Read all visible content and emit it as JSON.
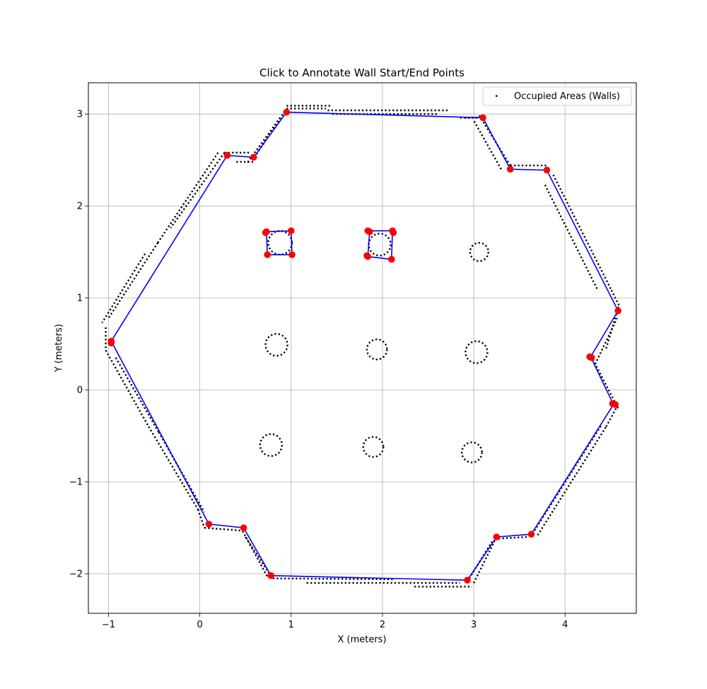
{
  "chart_data": {
    "type": "scatter",
    "title": "Click to Annotate Wall Start/End Points",
    "xlabel": "X (meters)",
    "ylabel": "Y (meters)",
    "xlim": [
      -1.22,
      4.78
    ],
    "ylim": [
      -2.43,
      3.34
    ],
    "xticks": [
      -1,
      0,
      1,
      2,
      3,
      4
    ],
    "xtick_labels": [
      "−1",
      "0",
      "1",
      "2",
      "3",
      "4"
    ],
    "yticks": [
      -2,
      -1,
      0,
      1,
      2,
      3
    ],
    "ytick_labels": [
      "−2",
      "−1",
      "0",
      "1",
      "2",
      "3"
    ],
    "grid": true,
    "legend": {
      "placement": "top-right",
      "entries": [
        "Occupied Areas (Walls)"
      ]
    },
    "colors": {
      "occupied": "#000000",
      "walls": "#0000ff",
      "points": "#ff0000",
      "grid": "#b0b0b0"
    },
    "occupied_segments": [
      [
        [
          0.95,
          3.09
        ],
        [
          1.43,
          3.09
        ]
      ],
      [
        [
          0.95,
          3.06
        ],
        [
          1.38,
          3.06
        ]
      ],
      [
        [
          1.4,
          3.04
        ],
        [
          2.73,
          3.04
        ]
      ],
      [
        [
          1.45,
          3.0
        ],
        [
          2.6,
          3.0
        ]
      ],
      [
        [
          2.85,
          2.96
        ],
        [
          3.05,
          2.96
        ]
      ],
      [
        [
          0.93,
          3.03
        ],
        [
          0.6,
          2.53
        ]
      ],
      [
        [
          0.88,
          2.96
        ],
        [
          0.52,
          2.47
        ]
      ],
      [
        [
          0.27,
          2.58
        ],
        [
          0.55,
          2.58
        ]
      ],
      [
        [
          0.4,
          2.48
        ],
        [
          0.6,
          2.48
        ]
      ],
      [
        [
          0.27,
          2.58
        ],
        [
          -0.32,
          1.76
        ]
      ],
      [
        [
          0.2,
          2.58
        ],
        [
          -0.46,
          1.6
        ]
      ],
      [
        [
          -0.46,
          1.6
        ],
        [
          -1.0,
          0.78
        ]
      ],
      [
        [
          -0.6,
          1.48
        ],
        [
          -1.07,
          0.73
        ]
      ],
      [
        [
          -1.03,
          0.68
        ],
        [
          -1.03,
          0.43
        ]
      ],
      [
        [
          -1.03,
          0.43
        ],
        [
          -0.56,
          -0.4
        ]
      ],
      [
        [
          -0.92,
          0.35
        ],
        [
          -0.45,
          -0.46
        ]
      ],
      [
        [
          -0.56,
          -0.4
        ],
        [
          -0.02,
          -1.3
        ]
      ],
      [
        [
          -0.45,
          -0.46
        ],
        [
          0.05,
          -1.33
        ]
      ],
      [
        [
          -0.02,
          -1.3
        ],
        [
          0.05,
          -1.5
        ]
      ],
      [
        [
          0.05,
          -1.5
        ],
        [
          0.45,
          -1.53
        ]
      ],
      [
        [
          0.45,
          -1.5
        ],
        [
          0.75,
          -2.05
        ]
      ],
      [
        [
          0.5,
          -1.6
        ],
        [
          0.77,
          -2.01
        ]
      ],
      [
        [
          0.8,
          -2.05
        ],
        [
          2.12,
          -2.06
        ]
      ],
      [
        [
          1.17,
          -2.1
        ],
        [
          2.85,
          -2.1
        ]
      ],
      [
        [
          2.35,
          -2.14
        ],
        [
          2.98,
          -2.14
        ]
      ],
      [
        [
          3.0,
          -2.1
        ],
        [
          3.23,
          -1.64
        ]
      ],
      [
        [
          2.95,
          -2.05
        ],
        [
          3.2,
          -1.65
        ]
      ],
      [
        [
          3.23,
          -1.62
        ],
        [
          3.58,
          -1.6
        ]
      ],
      [
        [
          3.7,
          -1.58
        ],
        [
          4.45,
          -0.4
        ]
      ],
      [
        [
          3.62,
          -1.6
        ],
        [
          4.4,
          -0.38
        ]
      ],
      [
        [
          4.45,
          -0.4
        ],
        [
          4.58,
          -0.16
        ]
      ],
      [
        [
          4.58,
          -0.2
        ],
        [
          4.3,
          0.34
        ]
      ],
      [
        [
          4.33,
          0.28
        ],
        [
          4.57,
          0.78
        ]
      ],
      [
        [
          4.45,
          0.45
        ],
        [
          4.59,
          0.92
        ]
      ],
      [
        [
          4.59,
          0.92
        ],
        [
          4.5,
          1.1
        ]
      ],
      [
        [
          4.5,
          1.1
        ],
        [
          3.87,
          2.34
        ]
      ],
      [
        [
          4.35,
          1.1
        ],
        [
          3.77,
          2.25
        ]
      ],
      [
        [
          3.4,
          2.44
        ],
        [
          3.8,
          2.44
        ]
      ],
      [
        [
          3.4,
          2.44
        ],
        [
          3.05,
          3.0
        ]
      ],
      [
        [
          3.3,
          2.4
        ],
        [
          3.0,
          2.93
        ]
      ],
      [
        [
          2.9,
          2.96
        ],
        [
          3.1,
          2.96
        ]
      ]
    ],
    "occupied_blobs": [
      {
        "cx": 0.88,
        "cy": 1.6,
        "r": 0.13
      },
      {
        "cx": 1.97,
        "cy": 1.58,
        "r": 0.12
      },
      {
        "cx": 3.06,
        "cy": 1.5,
        "r": 0.1
      },
      {
        "cx": 0.84,
        "cy": 0.49,
        "r": 0.12
      },
      {
        "cx": 1.94,
        "cy": 0.44,
        "r": 0.11
      },
      {
        "cx": 3.03,
        "cy": 0.41,
        "r": 0.12
      },
      {
        "cx": 0.78,
        "cy": -0.6,
        "r": 0.12
      },
      {
        "cx": 1.9,
        "cy": -0.62,
        "r": 0.11
      },
      {
        "cx": 2.98,
        "cy": -0.68,
        "r": 0.11
      }
    ],
    "outer_wall_polygon": [
      [
        0.95,
        3.02
      ],
      [
        3.1,
        2.96
      ],
      [
        3.4,
        2.4
      ],
      [
        3.8,
        2.39
      ],
      [
        4.58,
        0.86
      ],
      [
        4.28,
        0.36
      ],
      [
        4.53,
        -0.16
      ],
      [
        3.63,
        -1.57
      ],
      [
        3.25,
        -1.6
      ],
      [
        2.93,
        -2.07
      ],
      [
        0.78,
        -2.02
      ],
      [
        0.48,
        -1.5
      ],
      [
        0.1,
        -1.46
      ],
      [
        -0.97,
        0.53
      ],
      [
        0.3,
        2.55
      ],
      [
        0.59,
        2.53
      ],
      [
        0.95,
        3.02
      ]
    ],
    "inner_wall_polygons": [
      [
        [
          0.73,
          1.72
        ],
        [
          1.0,
          1.73
        ],
        [
          1.01,
          1.47
        ],
        [
          0.74,
          1.47
        ],
        [
          0.73,
          1.72
        ]
      ],
      [
        [
          1.84,
          1.73
        ],
        [
          2.11,
          1.73
        ],
        [
          2.1,
          1.42
        ],
        [
          1.84,
          1.45
        ],
        [
          1.86,
          1.72
        ]
      ]
    ],
    "annotated_points": [
      [
        0.95,
        3.02
      ],
      [
        3.1,
        2.96
      ],
      [
        3.4,
        2.4
      ],
      [
        3.8,
        2.39
      ],
      [
        4.58,
        0.86
      ],
      [
        4.27,
        0.36
      ],
      [
        4.29,
        0.35
      ],
      [
        4.52,
        -0.15
      ],
      [
        4.55,
        -0.16
      ],
      [
        3.63,
        -1.57
      ],
      [
        3.25,
        -1.6
      ],
      [
        2.93,
        -2.07
      ],
      [
        0.78,
        -2.02
      ],
      [
        0.48,
        -1.5
      ],
      [
        0.1,
        -1.46
      ],
      [
        -0.97,
        0.53
      ],
      [
        -0.97,
        0.51
      ],
      [
        0.3,
        2.55
      ],
      [
        0.59,
        2.53
      ],
      [
        0.73,
        1.72
      ],
      [
        0.72,
        1.71
      ],
      [
        1.0,
        1.73
      ],
      [
        1.01,
        1.47
      ],
      [
        0.74,
        1.47
      ],
      [
        1.84,
        1.73
      ],
      [
        1.86,
        1.72
      ],
      [
        2.11,
        1.73
      ],
      [
        2.12,
        1.71
      ],
      [
        2.1,
        1.42
      ],
      [
        1.83,
        1.46
      ],
      [
        1.84,
        1.45
      ]
    ]
  }
}
